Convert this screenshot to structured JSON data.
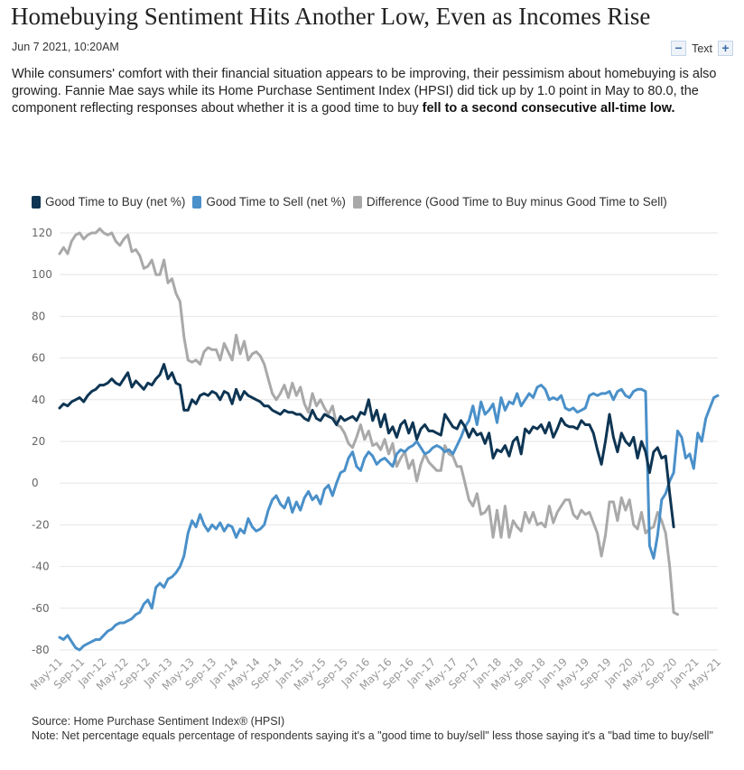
{
  "article": {
    "title": "Homebuying Sentiment Hits Another Low, Even as Incomes Rise",
    "date": "Jun 7 2021, 10:20AM",
    "text_size_label": "Text",
    "text_minus": "−",
    "text_plus": "+",
    "intro_plain": "While consumers' comfort with their financial situation appears to be improving, their pessimism about homebuying is also growing. Fannie Mae says while its Home Purchase Sentiment Index (HPSI) did tick up by 1.0 point in May to 80.0, the component reflecting responses about whether it is a good time to buy ",
    "intro_bold": "fell to a second consecutive all-time low."
  },
  "chart_data": {
    "type": "line",
    "title": "",
    "xlabel": "",
    "ylabel": "",
    "ylim": [
      -80,
      120
    ],
    "yticks": [
      "120",
      "100",
      "80",
      "60",
      "40",
      "20",
      "0",
      "-20",
      "-40",
      "-60",
      "-80"
    ],
    "grid": true,
    "legend_position": "top",
    "x_start": "May-11",
    "x_end": "May-21",
    "x_tick_labels": [
      "May-11",
      "Sep-11",
      "Jan-12",
      "May-12",
      "Sep-12",
      "Jan-13",
      "May-13",
      "Sep-13",
      "Jan-14",
      "May-14",
      "Sep-14",
      "Jan-15",
      "May-15",
      "Sep-15",
      "Jan-16",
      "May-16",
      "Sep-16",
      "Jan-17",
      "May-17",
      "Sep-17",
      "Jan-18",
      "May-18",
      "Sep-18",
      "Jan-19",
      "May-19",
      "Sep-19",
      "Jan-20",
      "May-20",
      "Sep-20",
      "Jan-21",
      "May-21"
    ],
    "series": [
      {
        "name": "Good Time to Buy (net %)",
        "color": "#0e3553",
        "values": [
          36,
          38,
          37,
          39,
          40,
          41,
          39,
          42,
          44,
          45,
          47,
          47,
          48,
          50,
          48,
          47,
          50,
          53,
          46,
          49,
          47,
          45,
          48,
          47,
          50,
          52,
          57,
          50,
          53,
          48,
          47,
          35,
          35,
          40,
          38,
          42,
          43,
          42,
          44,
          43,
          40,
          44,
          43,
          38,
          45,
          40,
          44,
          42,
          41,
          40,
          39,
          37,
          37,
          35,
          34,
          33,
          35,
          34,
          34,
          33,
          33,
          31,
          30,
          35,
          31,
          30,
          33,
          32,
          31,
          28,
          32,
          30,
          31,
          32,
          30,
          34,
          33,
          40,
          30,
          35,
          27,
          33,
          24,
          27,
          22,
          28,
          30,
          24,
          29,
          21,
          26,
          28,
          25,
          25,
          24,
          23,
          33,
          30,
          27,
          26,
          30,
          27,
          22,
          26,
          23,
          24,
          19,
          24,
          12,
          16,
          15,
          18,
          13,
          20,
          22,
          14,
          26,
          24,
          27,
          26,
          28,
          24,
          29,
          22,
          26,
          31,
          28,
          27,
          27,
          26,
          30,
          28,
          28,
          24,
          16,
          9,
          20,
          33,
          22,
          15,
          24,
          20,
          18,
          22,
          12,
          20,
          15,
          5,
          15,
          17,
          12,
          13,
          -5,
          -21
        ],
        "x_start_index": 0
      },
      {
        "name": "Good Time to Sell (net %)",
        "color": "#4a90c9",
        "values": [
          -74,
          -75,
          -73,
          -76,
          -79,
          -80,
          -78,
          -77,
          -76,
          -75,
          -75,
          -73,
          -71,
          -70,
          -68,
          -67,
          -67,
          -66,
          -65,
          -63,
          -62,
          -58,
          -56,
          -60,
          -50,
          -48,
          -50,
          -46,
          -45,
          -43,
          -40,
          -35,
          -24,
          -18,
          -21,
          -15,
          -20,
          -23,
          -20,
          -22,
          -19,
          -23,
          -20,
          -21,
          -26,
          -22,
          -24,
          -17,
          -21,
          -23,
          -22,
          -20,
          -13,
          -8,
          -6,
          -10,
          -12,
          -7,
          -14,
          -9,
          -13,
          -7,
          -4,
          -8,
          -6,
          -10,
          -3,
          -1,
          -6,
          0,
          5,
          6,
          12,
          15,
          8,
          6,
          12,
          15,
          13,
          9,
          11,
          12,
          10,
          8,
          14,
          16,
          15,
          17,
          18,
          20,
          17,
          14,
          15,
          17,
          18,
          17,
          15,
          16,
          14,
          18,
          22,
          27,
          30,
          37,
          28,
          39,
          33,
          35,
          38,
          29,
          41,
          35,
          39,
          38,
          43,
          37,
          40,
          43,
          41,
          46,
          47,
          45,
          40,
          41,
          40,
          42,
          36,
          35,
          36,
          34,
          35,
          36,
          42,
          43,
          42,
          43,
          43,
          44,
          40,
          44,
          45,
          42,
          41,
          44,
          45,
          45,
          44,
          -30,
          -36,
          -25,
          -8,
          -5,
          1,
          5,
          25,
          22,
          12,
          14,
          7,
          24,
          20,
          31,
          36,
          41,
          42
        ],
        "x_start_index": 0
      },
      {
        "name": "Difference (Good Time to Buy minus Good Time to Sell)",
        "color": "#a9a9a9",
        "values": [
          110,
          113,
          110,
          116,
          119,
          120,
          117,
          119,
          120,
          120,
          122,
          120,
          119,
          120,
          116,
          114,
          117,
          119,
          111,
          112,
          109,
          103,
          104,
          107,
          100,
          100,
          107,
          96,
          98,
          91,
          87,
          70,
          59,
          58,
          59,
          57,
          63,
          65,
          64,
          64,
          59,
          67,
          63,
          59,
          71,
          62,
          68,
          59,
          62,
          63,
          61,
          57,
          50,
          43,
          40,
          43,
          47,
          41,
          48,
          42,
          46,
          38,
          34,
          43,
          37,
          40,
          36,
          33,
          37,
          28,
          27,
          24,
          19,
          17,
          22,
          28,
          21,
          25,
          18,
          19,
          16,
          21,
          14,
          19,
          8,
          12,
          15,
          7,
          11,
          1,
          9,
          14,
          10,
          8,
          6,
          6,
          18,
          14,
          13,
          8,
          8,
          0,
          -8,
          -11,
          -5,
          -15,
          -14,
          -11,
          -26,
          -13,
          -26,
          -11,
          -26,
          -18,
          -21,
          -23,
          -14,
          -19,
          -14,
          -20,
          -19,
          -21,
          -11,
          -19,
          -14,
          -11,
          -8,
          -8,
          -15,
          -17,
          -13,
          -15,
          -14,
          -19,
          -24,
          -35,
          -25,
          -9,
          -9,
          -18,
          -7,
          -13,
          -8,
          -20,
          -22,
          -14,
          -24,
          -22,
          -21,
          -14,
          -18,
          -24,
          -40,
          -62,
          -63
        ],
        "x_start_index": 0
      }
    ]
  },
  "footer": {
    "source": "Source: Home Purchase Sentiment Index® (HPSI)",
    "note": "Note: Net percentage equals percentage of respondents saying it's a \"good time to buy/sell\" less those saying it's a \"bad time to buy/sell\""
  }
}
